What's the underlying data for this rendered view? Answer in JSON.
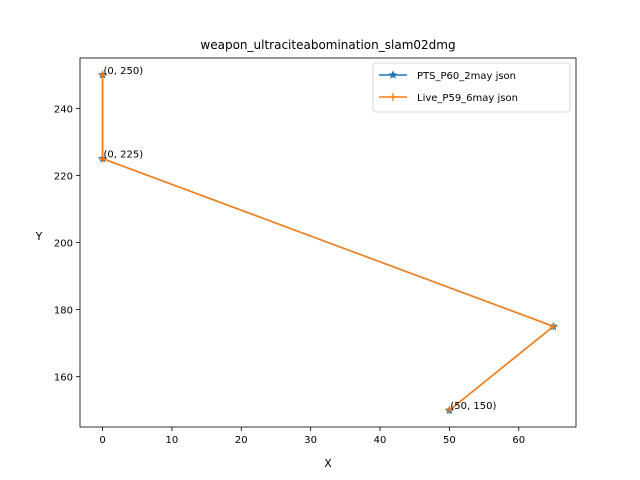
{
  "chart_data": {
    "type": "line",
    "title": "weapon_ultraciteabomination_slam02dmg",
    "xlabel": "X",
    "ylabel": "Y",
    "xlim": [
      -3.25,
      68.25
    ],
    "ylim": [
      145,
      255
    ],
    "xticks": [
      0,
      10,
      20,
      30,
      40,
      50,
      60
    ],
    "yticks": [
      160,
      180,
      200,
      220,
      240
    ],
    "grid": false,
    "legend_position": "top-right",
    "series": [
      {
        "name": "PTS_P60_2may json",
        "color": "#1f77b4",
        "marker": "star",
        "x": [
          0,
          0,
          65,
          50
        ],
        "y": [
          250,
          225,
          175,
          150
        ]
      },
      {
        "name": "Live_P59_6may json",
        "color": "#ff7f0e",
        "marker": "plus",
        "x": [
          0,
          0,
          65,
          50
        ],
        "y": [
          250,
          225,
          175,
          150
        ]
      }
    ],
    "annotations": [
      {
        "text": "(0, 250)",
        "x": 0,
        "y": 250
      },
      {
        "text": "(0, 225)",
        "x": 0,
        "y": 225
      },
      {
        "text": "(50, 150)",
        "x": 50,
        "y": 150
      }
    ]
  }
}
